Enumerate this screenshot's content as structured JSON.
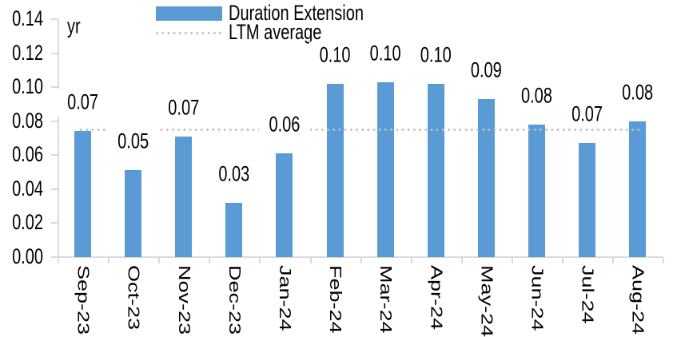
{
  "chart_data": {
    "type": "bar",
    "title": "",
    "unit_label": "yr",
    "xlabel": "",
    "ylabel": "yr",
    "categories": [
      "Sep-23",
      "Oct-23",
      "Nov-23",
      "Dec-23",
      "Jan-24",
      "Feb-24",
      "Mar-24",
      "Apr-24",
      "May-24",
      "Jun-24",
      "Jul-24",
      "Aug-24"
    ],
    "series": [
      {
        "name": "Duration Extension",
        "color": "#5B9BD5",
        "values": [
          0.074,
          0.051,
          0.071,
          0.032,
          0.061,
          0.102,
          0.103,
          0.102,
          0.093,
          0.078,
          0.067,
          0.08
        ],
        "data_labels": [
          "0.07",
          "0.05",
          "0.07",
          "0.03",
          "0.06",
          "0.10",
          "0.10",
          "0.10",
          "0.09",
          "0.08",
          "0.07",
          "0.08"
        ]
      }
    ],
    "reference_line": {
      "name": "LTM average",
      "value": 0.075,
      "style": "dotted",
      "color": "#BFBFBF"
    },
    "ylim": [
      0,
      0.14
    ],
    "y_tick_step": 0.02,
    "y_tick_labels": [
      "0.00",
      "0.02",
      "0.04",
      "0.06",
      "0.08",
      "0.10",
      "0.12",
      "0.14"
    ],
    "grid": false,
    "legend_position": "top-center",
    "axis_color": "#D9D9D9",
    "text_color": "#000000",
    "background_color": "#FFFFFF"
  }
}
